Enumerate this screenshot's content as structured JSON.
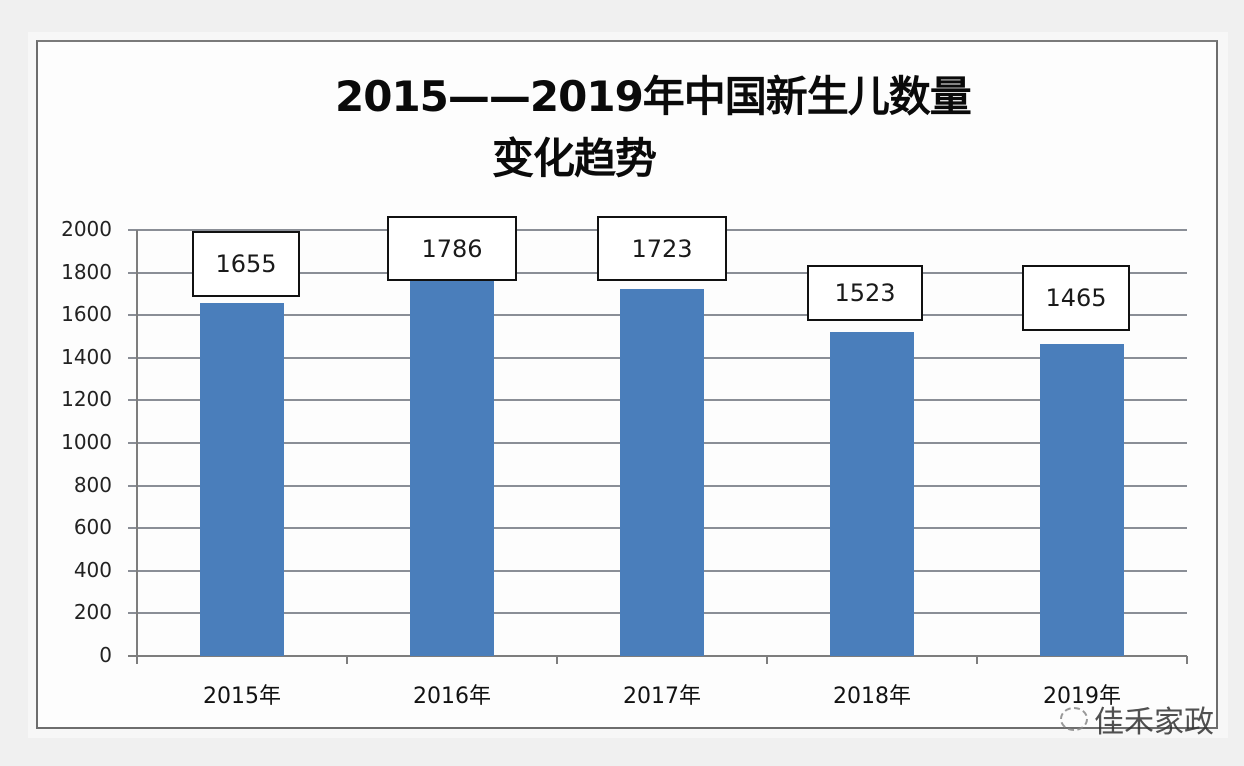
{
  "chart_data": {
    "type": "bar",
    "title": "2015——2019年中国新生儿数量变化趋势",
    "title_lines": [
      "2015——2019年中国新生儿数量",
      "变化趋势"
    ],
    "categories": [
      "2015年",
      "2016年",
      "2017年",
      "2018年",
      "2019年"
    ],
    "values": [
      1655,
      1786,
      1723,
      1523,
      1465
    ],
    "data_labels": [
      "1655",
      "1786",
      "1723",
      "1523",
      "1465"
    ],
    "xlabel": "",
    "ylabel": "",
    "ylim": [
      0,
      2000
    ],
    "yticks": [
      0,
      200,
      400,
      600,
      800,
      1000,
      1200,
      1400,
      1600,
      1800,
      2000
    ],
    "ytick_labels": [
      "0",
      "200",
      "400",
      "600",
      "800",
      "1000",
      "1200",
      "1400",
      "1600",
      "1800",
      "2000"
    ],
    "grid": true,
    "legend": null,
    "bar_color": "#4a7ebb"
  },
  "watermark": {
    "text": "佳禾家政",
    "icon": "wechat-icon"
  }
}
